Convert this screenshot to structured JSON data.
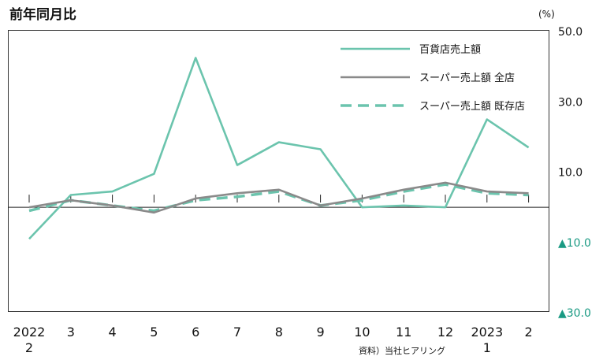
{
  "chart_data": {
    "type": "line",
    "title": "前年同月比",
    "unit_label": "(%)",
    "categories": [
      "2022\n2",
      "3",
      "4",
      "5",
      "6",
      "7",
      "8",
      "9",
      "10",
      "11",
      "12",
      "2023\n1",
      "2"
    ],
    "x_tick_labels": [
      {
        "top": "2022",
        "bottom": "2"
      },
      {
        "top": "3",
        "bottom": ""
      },
      {
        "top": "4",
        "bottom": ""
      },
      {
        "top": "5",
        "bottom": ""
      },
      {
        "top": "6",
        "bottom": ""
      },
      {
        "top": "7",
        "bottom": ""
      },
      {
        "top": "8",
        "bottom": ""
      },
      {
        "top": "9",
        "bottom": ""
      },
      {
        "top": "10",
        "bottom": ""
      },
      {
        "top": "11",
        "bottom": ""
      },
      {
        "top": "12",
        "bottom": ""
      },
      {
        "top": "2023",
        "bottom": "1"
      },
      {
        "top": "2",
        "bottom": ""
      }
    ],
    "y_ticks": [
      {
        "value": 50,
        "label": "50.0"
      },
      {
        "value": 30,
        "label": "30.0"
      },
      {
        "value": 10,
        "label": "10.0"
      },
      {
        "value": -10,
        "label": "▲10.0"
      },
      {
        "value": -30,
        "label": "▲30.0"
      }
    ],
    "ylim": [
      -30,
      50
    ],
    "grid": false,
    "legend_position": "top-right",
    "series": [
      {
        "name": "百貨店売上額",
        "color": "#6bc4ad",
        "style": "solid",
        "values": [
          -9.0,
          3.5,
          4.5,
          9.5,
          42.5,
          12.0,
          18.5,
          16.5,
          0.0,
          0.5,
          0.0,
          25.0,
          17.0
        ]
      },
      {
        "name": "スーパー売上額 全店",
        "color": "#8a8a8a",
        "style": "solid",
        "values": [
          0.0,
          2.0,
          0.5,
          -1.5,
          2.5,
          4.0,
          5.0,
          0.5,
          2.5,
          5.0,
          7.0,
          4.5,
          4.0
        ]
      },
      {
        "name": "スーパー売上額 既存店",
        "color": "#6bc4ad",
        "style": "dashed",
        "values": [
          -1.0,
          2.0,
          0.5,
          -1.0,
          2.0,
          3.0,
          4.5,
          0.5,
          2.0,
          4.5,
          6.5,
          4.0,
          3.5
        ]
      }
    ],
    "source": "資料）当社ヒアリング"
  }
}
